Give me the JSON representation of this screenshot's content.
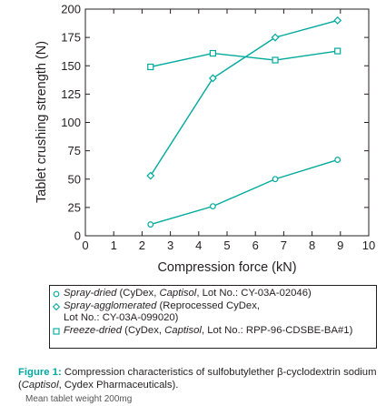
{
  "chart_data": {
    "type": "line",
    "xlabel": "Compression force (kN)",
    "ylabel": "Tablet crushing strength (N)",
    "xlim": [
      0,
      10
    ],
    "ylim": [
      0,
      200
    ],
    "xticks": [
      0,
      1,
      2,
      3,
      4,
      5,
      6,
      7,
      8,
      9,
      10
    ],
    "yticks": [
      0,
      25,
      50,
      75,
      100,
      125,
      150,
      175,
      200
    ],
    "grid": false,
    "legend_placement": "below",
    "series_color": "#00a99d",
    "series": [
      {
        "marker": "circle",
        "x": [
          2.3,
          4.5,
          6.7,
          8.9
        ],
        "values": [
          10,
          26,
          50,
          67
        ]
      },
      {
        "marker": "diamond",
        "x": [
          2.3,
          4.5,
          6.7,
          8.9
        ],
        "values": [
          53,
          139,
          175,
          190
        ]
      },
      {
        "marker": "square",
        "x": [
          2.3,
          4.5,
          6.7,
          8.9
        ],
        "values": [
          149,
          161,
          155,
          163
        ]
      }
    ]
  },
  "legend": {
    "spray_dried": {
      "method": "Spray-dried",
      "pre": " (CyDex, ",
      "brand": "Captisol",
      "post": ", Lot No.: CY-03A-02046)"
    },
    "spray_agglomerated": {
      "method": "Spray-agglomerated",
      "line1": " (Reprocessed CyDex,",
      "line2": "Lot No.: CY-03A-099020)"
    },
    "freeze_dried": {
      "method": "Freeze-dried",
      "pre": " (CyDex, ",
      "brand": "Captisol",
      "post": ", Lot No.: RPP-96-CDSBE-BA#1)"
    }
  },
  "caption": {
    "label": "Figure 1:",
    "text1": " Compression characteristics of sulfobutylether β-cyclodextrin sodium (",
    "brand": "Captisol",
    "text2": ", Cydex Pharmaceuticals).",
    "cut_line": "Mean tablet weight 200mg"
  }
}
